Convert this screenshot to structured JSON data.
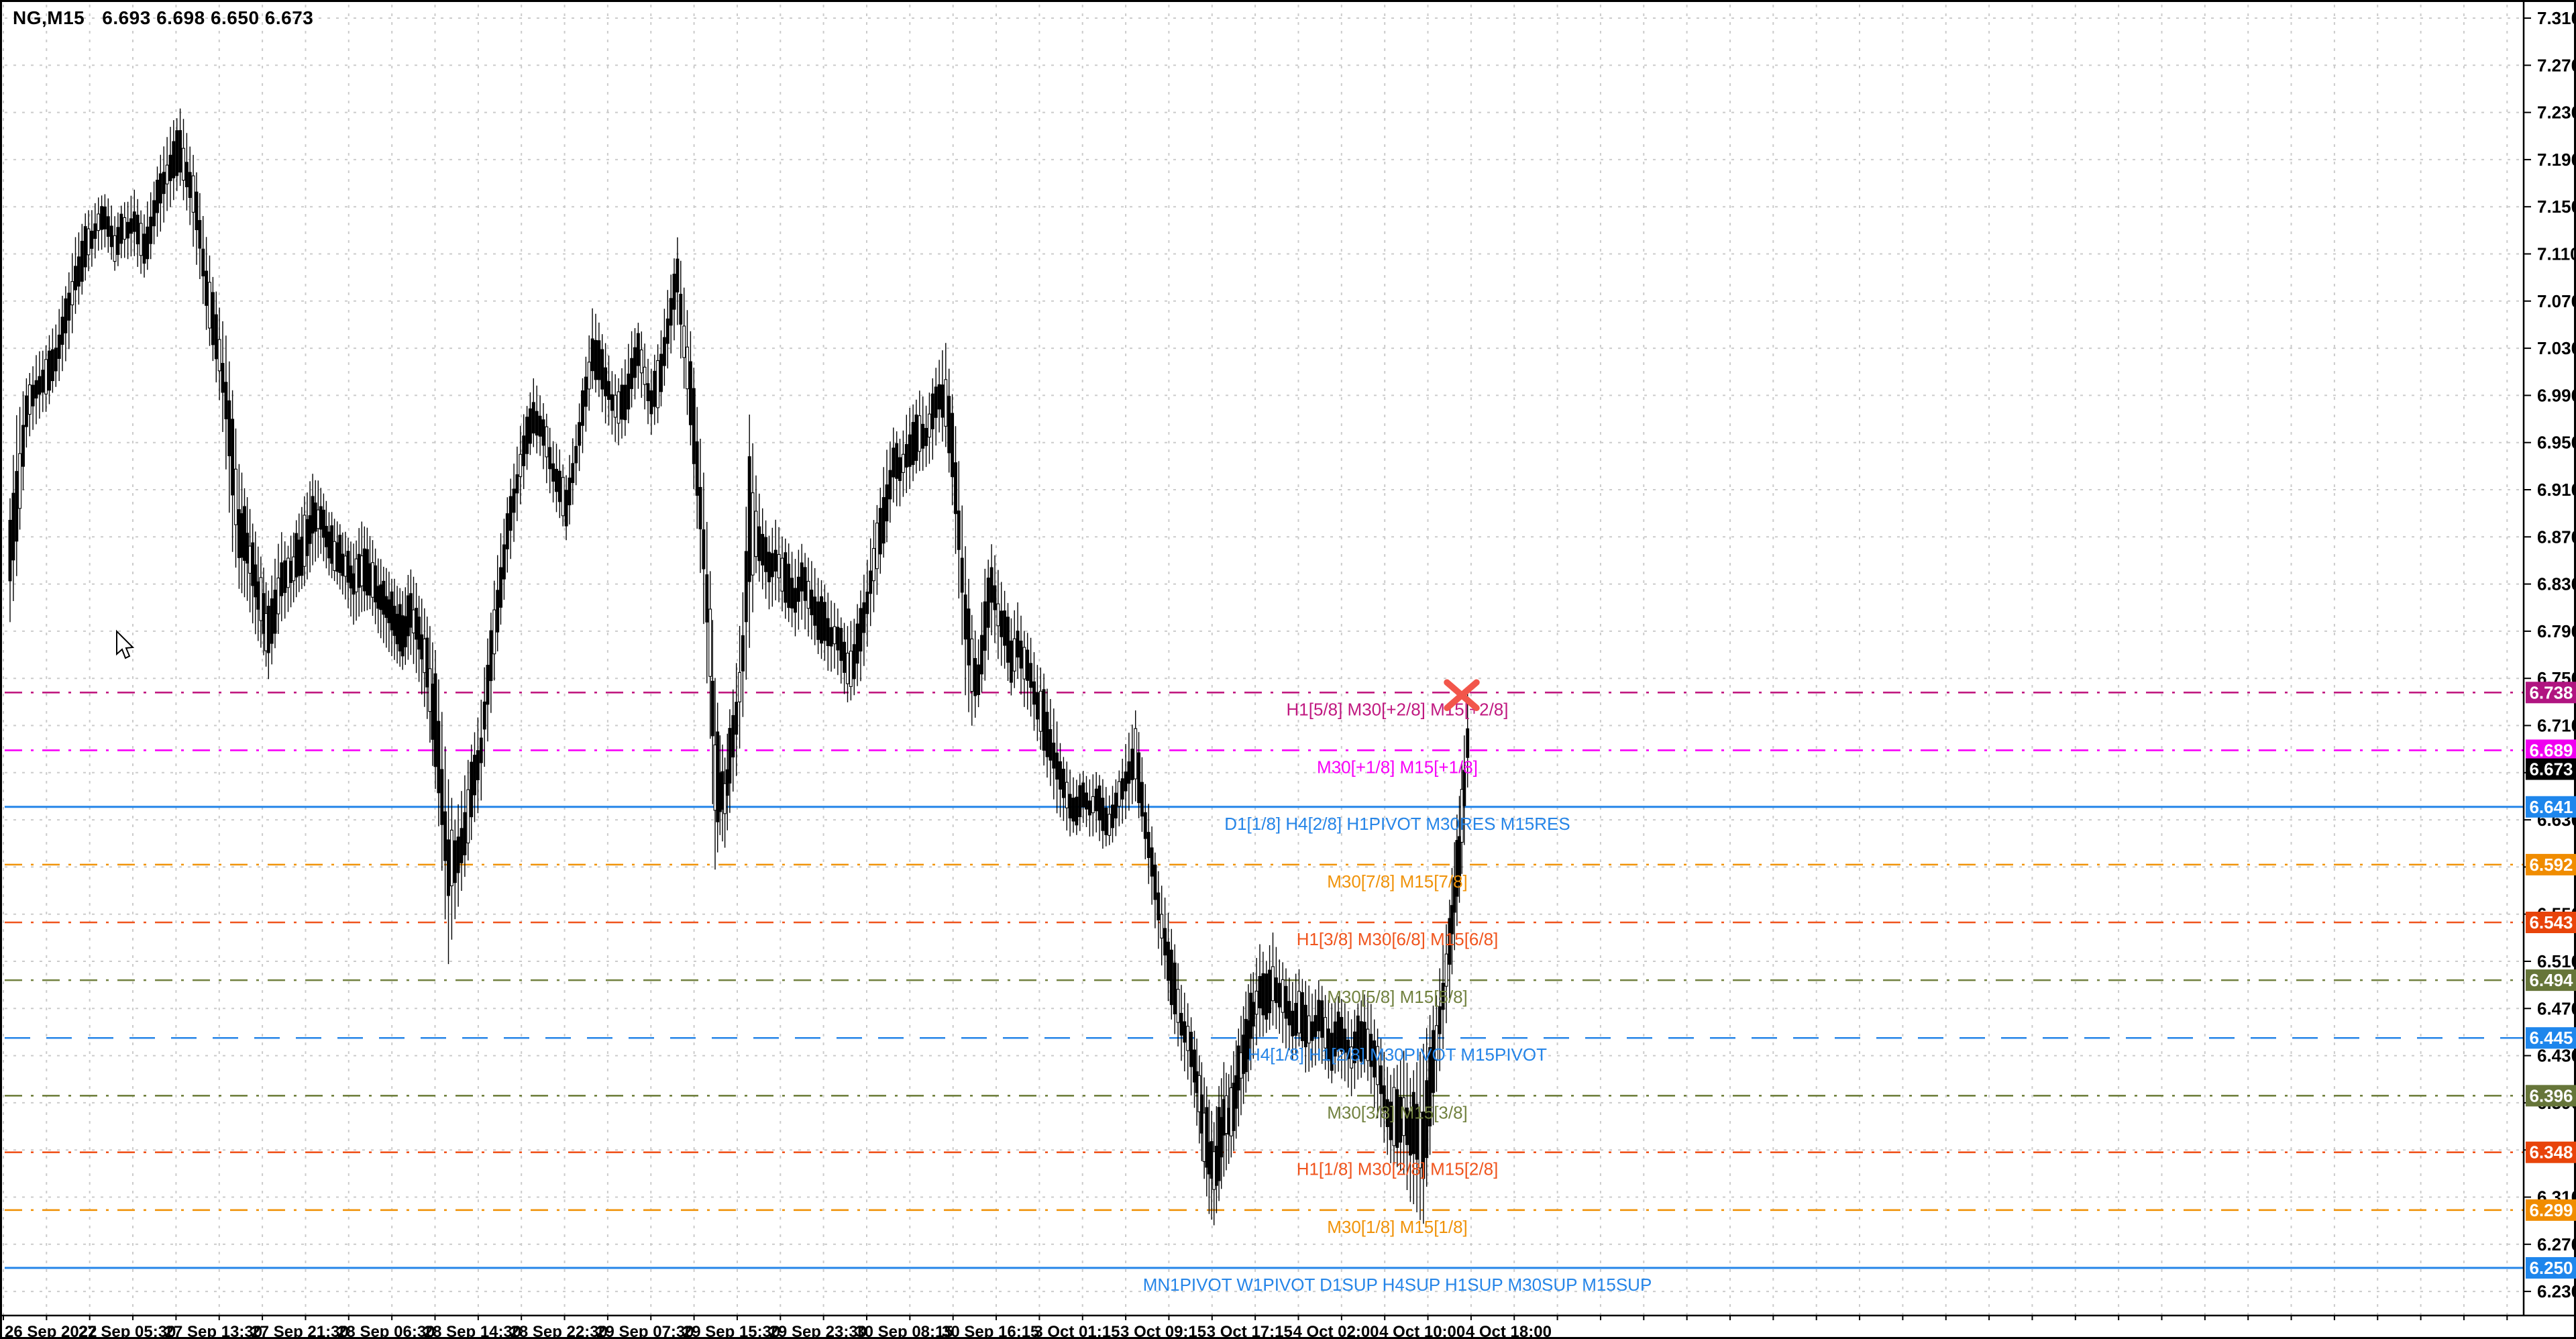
{
  "window": {
    "title": "NG,M15",
    "ohlc": "6.693 6.698 6.650 6.673"
  },
  "colors": {
    "background": "#ffffff",
    "frame": "#000000",
    "grid": "#cbcbcb",
    "candle": "#000000",
    "axis_text": "#000000",
    "marker_red": "#F2564B"
  },
  "price_axis": {
    "ticks": [
      "7.310",
      "7.270",
      "7.230",
      "7.190",
      "7.150",
      "7.110",
      "7.070",
      "7.030",
      "6.990",
      "6.950",
      "6.910",
      "6.870",
      "6.830",
      "6.790",
      "6.750",
      "6.710",
      "6.670",
      "6.630",
      "6.590",
      "6.550",
      "6.510",
      "6.470",
      "6.430",
      "6.390",
      "6.350",
      "6.310",
      "6.270",
      "6.230"
    ],
    "top_tick": 7.31,
    "bottom_tick": 6.23,
    "step": 0.04,
    "current_price": {
      "value": "6.673",
      "badge_color": "#000000",
      "text_color": "#ffffff"
    }
  },
  "time_axis": {
    "labels": [
      "26 Sep 2022",
      "27 Sep 05:30",
      "27 Sep 13:30",
      "27 Sep 21:30",
      "28 Sep 06:30",
      "28 Sep 14:30",
      "28 Sep 22:30",
      "29 Sep 07:30",
      "29 Sep 15:30",
      "29 Sep 23:30",
      "30 Sep 08:15",
      "30 Sep 16:15",
      "3 Oct 01:15",
      "3 Oct 09:15",
      "3 Oct 17:15",
      "4 Oct 02:00",
      "4 Oct 10:00",
      "4 Oct 18:00"
    ]
  },
  "levels": [
    {
      "price": 6.738,
      "value": "6.738",
      "label": "H1[5/8] M30[+2/8] M15[+2/8]",
      "style": "dashdot",
      "color": "#C01980",
      "badge_color": "#B01480"
    },
    {
      "price": 6.689,
      "value": "6.689",
      "label": "M30[+1/8] M15[+1/8]",
      "style": "dashdot",
      "color": "#F800F8",
      "badge_color": "#F000F0"
    },
    {
      "price": 6.641,
      "value": "6.641",
      "label": "D1[1/8] H4[2/8] H1PIVOT M30RES M15RES",
      "style": "solid",
      "color": "#2585E8",
      "badge_color": "#1E86EC"
    },
    {
      "price": 6.592,
      "value": "6.592",
      "label": "M30[7/8] M15[7/8]",
      "style": "dashdot",
      "color": "#F0930A",
      "badge_color": "#F08C00"
    },
    {
      "price": 6.543,
      "value": "6.543",
      "label": "H1[3/8] M30[6/8] M15[6/8]",
      "style": "dashdot",
      "color": "#F0551E",
      "badge_color": "#E8440A"
    },
    {
      "price": 6.494,
      "value": "6.494",
      "label": "M30[5/8] M15[5/8]",
      "style": "dashdot",
      "color": "#71813F",
      "badge_color": "#667539"
    },
    {
      "price": 6.445,
      "value": "6.445",
      "label": "H4[1/8] H1[2/8] M30PIVOT M15PIVOT",
      "style": "dash",
      "color": "#2585E8",
      "badge_color": "#1E86EC"
    },
    {
      "price": 6.396,
      "value": "6.396",
      "label": "M30[3/8] M15[3/8]",
      "style": "dashdot",
      "color": "#71813F",
      "badge_color": "#667539"
    },
    {
      "price": 6.348,
      "value": "6.348",
      "label": "H1[1/8] M30[2/8] M15[2/8]",
      "style": "dashdot",
      "color": "#F0551E",
      "badge_color": "#E8440A"
    },
    {
      "price": 6.299,
      "value": "6.299",
      "label": "M30[1/8] M15[1/8]",
      "style": "dashdot",
      "color": "#F0930A",
      "badge_color": "#F08C00"
    },
    {
      "price": 6.25,
      "value": "6.250",
      "label": "MN1PIVOT W1PIVOT D1SUP H4SUP H1SUP M30SUP M15SUP",
      "style": "solid",
      "color": "#2585E8",
      "badge_color": "#1E86EC"
    }
  ],
  "marker": {
    "type": "sell-cross",
    "color": "#F2564B",
    "price": 6.738,
    "near_time": "4 Oct 18:00"
  },
  "chart_data": {
    "type": "candlestick",
    "symbol": "NG",
    "timeframe": "M15",
    "title": "NG,M15",
    "last_bar": {
      "open": 6.693,
      "high": 6.698,
      "low": 6.65,
      "close": 6.673
    },
    "ylim": [
      6.23,
      7.31
    ],
    "x_start": "26 Sep 2022",
    "x_end": "4 Oct 18:00",
    "grid": true,
    "note": "envelope samples [x_px_at_1568_scale, high, low] tracing the M15 price path",
    "envelope": [
      [
        0,
        6.9,
        6.8
      ],
      [
        4,
        6.97,
        6.84
      ],
      [
        10,
        7.0,
        6.95
      ],
      [
        16,
        7.02,
        6.97
      ],
      [
        22,
        7.03,
        6.98
      ],
      [
        28,
        7.05,
        7.0
      ],
      [
        34,
        7.08,
        7.02
      ],
      [
        40,
        7.12,
        7.06
      ],
      [
        46,
        7.14,
        7.09
      ],
      [
        52,
        7.15,
        7.11
      ],
      [
        58,
        7.16,
        7.12
      ],
      [
        64,
        7.14,
        7.1
      ],
      [
        70,
        7.15,
        7.11
      ],
      [
        76,
        7.16,
        7.11
      ],
      [
        82,
        7.14,
        7.09
      ],
      [
        88,
        7.17,
        7.12
      ],
      [
        94,
        7.2,
        7.14
      ],
      [
        100,
        7.22,
        7.16
      ],
      [
        104,
        7.23,
        7.17
      ],
      [
        108,
        7.21,
        7.15
      ],
      [
        112,
        7.19,
        7.12
      ],
      [
        116,
        7.16,
        7.09
      ],
      [
        120,
        7.12,
        7.05
      ],
      [
        124,
        7.09,
        7.02
      ],
      [
        128,
        7.06,
        6.99
      ],
      [
        132,
        7.04,
        6.93
      ],
      [
        136,
        6.99,
        6.86
      ],
      [
        140,
        6.93,
        6.83
      ],
      [
        145,
        6.9,
        6.82
      ],
      [
        150,
        6.87,
        6.79
      ],
      [
        155,
        6.84,
        6.77
      ],
      [
        158,
        6.82,
        6.75
      ],
      [
        162,
        6.85,
        6.78
      ],
      [
        166,
        6.87,
        6.8
      ],
      [
        170,
        6.86,
        6.81
      ],
      [
        175,
        6.88,
        6.82
      ],
      [
        180,
        6.9,
        6.83
      ],
      [
        185,
        6.92,
        6.85
      ],
      [
        190,
        6.91,
        6.86
      ],
      [
        195,
        6.89,
        6.84
      ],
      [
        200,
        6.88,
        6.83
      ],
      [
        205,
        6.87,
        6.82
      ],
      [
        210,
        6.86,
        6.8
      ],
      [
        215,
        6.88,
        6.81
      ],
      [
        220,
        6.87,
        6.81
      ],
      [
        225,
        6.85,
        6.79
      ],
      [
        230,
        6.84,
        6.78
      ],
      [
        235,
        6.83,
        6.77
      ],
      [
        240,
        6.82,
        6.76
      ],
      [
        245,
        6.84,
        6.77
      ],
      [
        250,
        6.82,
        6.75
      ],
      [
        255,
        6.8,
        6.72
      ],
      [
        260,
        6.77,
        6.66
      ],
      [
        264,
        6.72,
        6.59
      ],
      [
        268,
        6.66,
        6.51
      ],
      [
        272,
        6.63,
        6.55
      ],
      [
        276,
        6.65,
        6.57
      ],
      [
        280,
        6.68,
        6.6
      ],
      [
        284,
        6.7,
        6.63
      ],
      [
        288,
        6.73,
        6.65
      ],
      [
        292,
        6.78,
        6.7
      ],
      [
        296,
        6.83,
        6.75
      ],
      [
        300,
        6.87,
        6.8
      ],
      [
        304,
        6.9,
        6.84
      ],
      [
        308,
        6.93,
        6.87
      ],
      [
        312,
        6.96,
        6.9
      ],
      [
        316,
        6.98,
        6.93
      ],
      [
        320,
        7.0,
        6.95
      ],
      [
        324,
        6.99,
        6.94
      ],
      [
        328,
        6.97,
        6.92
      ],
      [
        332,
        6.95,
        6.9
      ],
      [
        336,
        6.94,
        6.89
      ],
      [
        340,
        6.92,
        6.87
      ],
      [
        344,
        6.95,
        6.9
      ],
      [
        348,
        6.98,
        6.93
      ],
      [
        352,
        7.02,
        6.96
      ],
      [
        356,
        7.06,
        7.0
      ],
      [
        360,
        7.05,
        6.99
      ],
      [
        364,
        7.03,
        6.97
      ],
      [
        368,
        7.01,
        6.96
      ],
      [
        372,
        7.0,
        6.95
      ],
      [
        376,
        7.02,
        6.96
      ],
      [
        380,
        7.04,
        6.98
      ],
      [
        384,
        7.05,
        7.0
      ],
      [
        388,
        7.03,
        6.98
      ],
      [
        392,
        7.01,
        6.96
      ],
      [
        396,
        7.03,
        6.97
      ],
      [
        400,
        7.06,
        7.0
      ],
      [
        404,
        7.09,
        7.03
      ],
      [
        408,
        7.12,
        7.05
      ],
      [
        412,
        7.08,
        7.0
      ],
      [
        416,
        7.04,
        6.95
      ],
      [
        420,
        6.98,
        6.88
      ],
      [
        424,
        6.92,
        6.8
      ],
      [
        428,
        6.84,
        6.7
      ],
      [
        431,
        6.75,
        6.59
      ],
      [
        434,
        6.7,
        6.62
      ],
      [
        437,
        6.68,
        6.61
      ],
      [
        440,
        6.72,
        6.64
      ],
      [
        444,
        6.76,
        6.67
      ],
      [
        448,
        6.82,
        6.72
      ],
      [
        452,
        6.97,
        6.78
      ],
      [
        456,
        6.92,
        6.84
      ],
      [
        460,
        6.89,
        6.83
      ],
      [
        464,
        6.87,
        6.81
      ],
      [
        468,
        6.88,
        6.82
      ],
      [
        472,
        6.87,
        6.81
      ],
      [
        476,
        6.86,
        6.8
      ],
      [
        480,
        6.85,
        6.79
      ],
      [
        484,
        6.86,
        6.8
      ],
      [
        488,
        6.85,
        6.79
      ],
      [
        492,
        6.84,
        6.78
      ],
      [
        496,
        6.83,
        6.77
      ],
      [
        500,
        6.82,
        6.76
      ],
      [
        504,
        6.81,
        6.76
      ],
      [
        508,
        6.8,
        6.75
      ],
      [
        512,
        6.79,
        6.73
      ],
      [
        516,
        6.8,
        6.74
      ],
      [
        520,
        6.82,
        6.75
      ],
      [
        524,
        6.85,
        6.78
      ],
      [
        528,
        6.88,
        6.81
      ],
      [
        532,
        6.91,
        6.84
      ],
      [
        536,
        6.94,
        6.87
      ],
      [
        540,
        6.96,
        6.9
      ],
      [
        544,
        6.95,
        6.9
      ],
      [
        548,
        6.97,
        6.91
      ],
      [
        552,
        6.98,
        6.92
      ],
      [
        556,
        6.99,
        6.93
      ],
      [
        560,
        6.98,
        6.93
      ],
      [
        564,
        7.0,
        6.94
      ],
      [
        568,
        7.02,
        6.96
      ],
      [
        572,
        7.03,
        6.95
      ],
      [
        576,
        6.99,
        6.9
      ],
      [
        580,
        6.93,
        6.82
      ],
      [
        584,
        6.86,
        6.74
      ],
      [
        588,
        6.8,
        6.71
      ],
      [
        592,
        6.78,
        6.73
      ],
      [
        596,
        6.84,
        6.75
      ],
      [
        600,
        6.86,
        6.79
      ],
      [
        604,
        6.84,
        6.77
      ],
      [
        608,
        6.82,
        6.76
      ],
      [
        612,
        6.8,
        6.74
      ],
      [
        616,
        6.81,
        6.75
      ],
      [
        620,
        6.79,
        6.73
      ],
      [
        624,
        6.78,
        6.72
      ],
      [
        628,
        6.76,
        6.7
      ],
      [
        632,
        6.75,
        6.68
      ],
      [
        636,
        6.73,
        6.66
      ],
      [
        640,
        6.71,
        6.64
      ],
      [
        644,
        6.68,
        6.63
      ],
      [
        648,
        6.67,
        6.62
      ],
      [
        652,
        6.66,
        6.62
      ],
      [
        656,
        6.67,
        6.63
      ],
      [
        660,
        6.66,
        6.62
      ],
      [
        664,
        6.67,
        6.62
      ],
      [
        668,
        6.66,
        6.61
      ],
      [
        672,
        6.65,
        6.61
      ],
      [
        676,
        6.66,
        6.62
      ],
      [
        680,
        6.68,
        6.63
      ],
      [
        684,
        6.7,
        6.64
      ],
      [
        688,
        6.72,
        6.65
      ],
      [
        692,
        6.68,
        6.62
      ],
      [
        696,
        6.64,
        6.58
      ],
      [
        700,
        6.6,
        6.54
      ],
      [
        704,
        6.57,
        6.51
      ],
      [
        708,
        6.55,
        6.48
      ],
      [
        712,
        6.52,
        6.45
      ],
      [
        716,
        6.49,
        6.43
      ],
      [
        720,
        6.47,
        6.41
      ],
      [
        724,
        6.45,
        6.39
      ],
      [
        727,
        6.43,
        6.36
      ],
      [
        730,
        6.41,
        6.33
      ],
      [
        733,
        6.39,
        6.3
      ],
      [
        736,
        6.37,
        6.29
      ],
      [
        739,
        6.4,
        6.31
      ],
      [
        742,
        6.42,
        6.33
      ],
      [
        745,
        6.41,
        6.34
      ],
      [
        748,
        6.43,
        6.35
      ],
      [
        751,
        6.45,
        6.37
      ],
      [
        754,
        6.47,
        6.39
      ],
      [
        757,
        6.49,
        6.41
      ],
      [
        760,
        6.5,
        6.43
      ],
      [
        764,
        6.52,
        6.45
      ],
      [
        768,
        6.51,
        6.45
      ],
      [
        772,
        6.53,
        6.46
      ],
      [
        776,
        6.51,
        6.45
      ],
      [
        780,
        6.5,
        6.44
      ],
      [
        784,
        6.49,
        6.43
      ],
      [
        788,
        6.5,
        6.44
      ],
      [
        792,
        6.49,
        6.42
      ],
      [
        796,
        6.48,
        6.42
      ],
      [
        800,
        6.49,
        6.43
      ],
      [
        804,
        6.48,
        6.42
      ],
      [
        808,
        6.47,
        6.41
      ],
      [
        812,
        6.48,
        6.42
      ],
      [
        816,
        6.47,
        6.41
      ],
      [
        820,
        6.46,
        6.4
      ],
      [
        824,
        6.47,
        6.41
      ],
      [
        828,
        6.48,
        6.42
      ],
      [
        832,
        6.47,
        6.4
      ],
      [
        836,
        6.45,
        6.38
      ],
      [
        840,
        6.43,
        6.36
      ],
      [
        844,
        6.41,
        6.34
      ],
      [
        848,
        6.42,
        6.34
      ],
      [
        852,
        6.43,
        6.33
      ],
      [
        856,
        6.41,
        6.31
      ],
      [
        860,
        6.42,
        6.3
      ],
      [
        864,
        6.44,
        6.29
      ],
      [
        868,
        6.46,
        6.35
      ],
      [
        872,
        6.48,
        6.4
      ],
      [
        876,
        6.52,
        6.44
      ],
      [
        880,
        6.56,
        6.48
      ],
      [
        883,
        6.61,
        6.52
      ],
      [
        886,
        6.65,
        6.56
      ],
      [
        889,
        6.7,
        6.61
      ],
      [
        891,
        6.735,
        6.66
      ],
      [
        893,
        6.71,
        6.65
      ]
    ]
  }
}
